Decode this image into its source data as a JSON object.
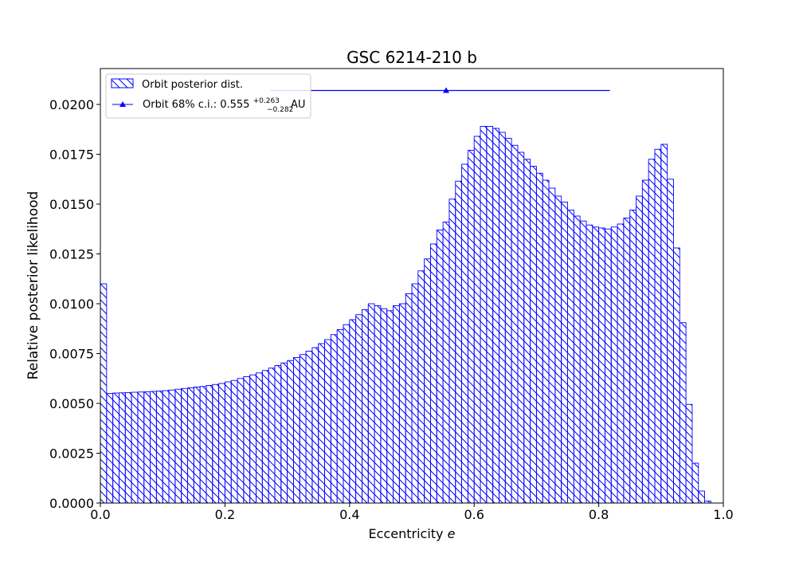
{
  "chart_data": {
    "type": "bar",
    "title": "GSC 6214-210 b",
    "xlabel": "Eccentricity",
    "xlabel_symbol": "e",
    "ylabel": "Relative posterior likelihood",
    "xlim": [
      0.0,
      1.0
    ],
    "ylim": [
      0.0,
      0.0218
    ],
    "x_ticks": [
      "0.0",
      "0.2",
      "0.4",
      "0.6",
      "0.8",
      "1.0"
    ],
    "y_ticks": [
      "0.0000",
      "0.0025",
      "0.0050",
      "0.0075",
      "0.0100",
      "0.0125",
      "0.0150",
      "0.0175",
      "0.0200"
    ],
    "bin_width": 0.01,
    "bin_start": 0.0,
    "values": [
      0.011,
      0.0055,
      0.00552,
      0.00553,
      0.00554,
      0.00556,
      0.00557,
      0.00558,
      0.0056,
      0.00562,
      0.00564,
      0.00567,
      0.00571,
      0.00575,
      0.00578,
      0.00582,
      0.00585,
      0.0059,
      0.00595,
      0.006,
      0.00608,
      0.00615,
      0.00625,
      0.00634,
      0.00643,
      0.00653,
      0.00665,
      0.00677,
      0.0069,
      0.00703,
      0.00715,
      0.0073,
      0.00745,
      0.00762,
      0.0078,
      0.008,
      0.0082,
      0.00845,
      0.0087,
      0.00895,
      0.0092,
      0.00945,
      0.0097,
      0.01,
      0.0099,
      0.00975,
      0.00965,
      0.0099,
      0.01,
      0.0105,
      0.011,
      0.01165,
      0.01225,
      0.013,
      0.0137,
      0.0141,
      0.01525,
      0.01615,
      0.017,
      0.0177,
      0.0184,
      0.0189,
      0.0189,
      0.0188,
      0.0186,
      0.0183,
      0.01795,
      0.0176,
      0.01725,
      0.0169,
      0.01655,
      0.0162,
      0.0158,
      0.0154,
      0.0151,
      0.0147,
      0.0144,
      0.01415,
      0.01395,
      0.01385,
      0.0138,
      0.01375,
      0.01385,
      0.014,
      0.0143,
      0.0147,
      0.0154,
      0.0162,
      0.01725,
      0.01775,
      0.018,
      0.01625,
      0.0128,
      0.00905,
      0.00495,
      0.002,
      0.0006,
      0.0001,
      0.0,
      0.0
    ],
    "series": [
      {
        "name": "Orbit posterior dist.",
        "kind": "histogram",
        "color": "#0000ff",
        "hatch": "backslash"
      },
      {
        "name": "Orbit 68% c.i.: 0.555",
        "name_sup": "+0.263",
        "name_sub": "−0.282",
        "name_unit": "AU",
        "kind": "errorbar",
        "color": "#0000ff",
        "marker": "triangle",
        "x": 0.555,
        "y": 0.0207,
        "x_err_plus": 0.263,
        "x_err_minus": 0.282
      }
    ],
    "legend_position": "top-left",
    "grid": false
  }
}
